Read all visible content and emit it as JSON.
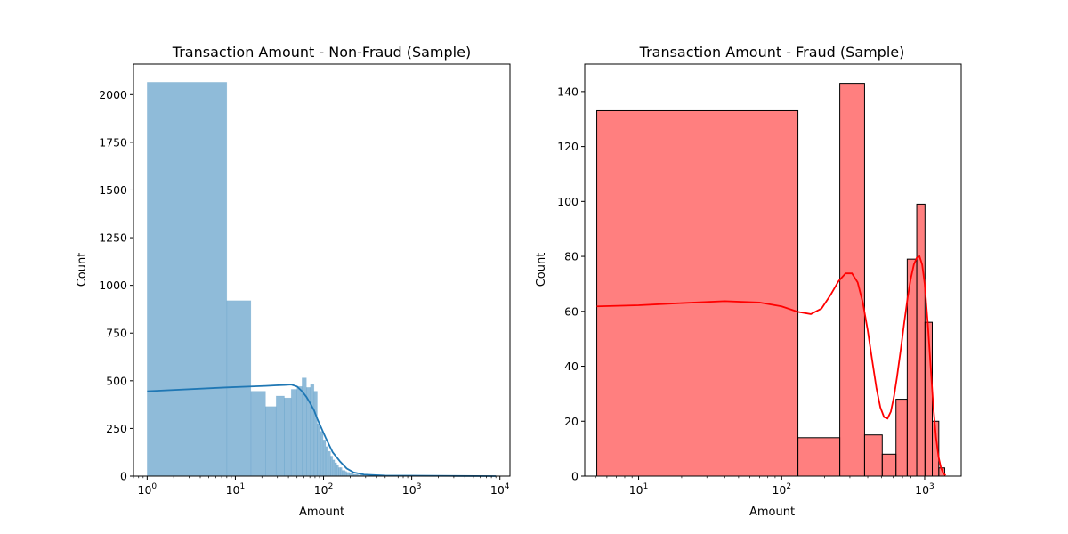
{
  "chart_data": [
    {
      "type": "bar",
      "title": "Transaction Amount - Non-Fraud (Sample)",
      "xlabel": "Amount",
      "ylabel": "Count",
      "xscale": "log",
      "xlim": [
        0.7,
        13000
      ],
      "ylim": [
        0,
        2160
      ],
      "yticks": [
        0,
        250,
        500,
        750,
        1000,
        1250,
        1500,
        1750,
        2000
      ],
      "xticks": [
        1,
        10,
        100,
        1000,
        10000
      ],
      "xtick_labels": [
        [
          "10",
          "0"
        ],
        [
          "10",
          "1"
        ],
        [
          "10",
          "2"
        ],
        [
          "10",
          "3"
        ],
        [
          "10",
          "4"
        ]
      ],
      "bar_color": "#1f77b4",
      "bar_opacity": 0.5,
      "bar_edge": "none",
      "kde_color": "#1f77b4",
      "bars": [
        {
          "x0": 1.0,
          "x1": 8.0,
          "count": 2065
        },
        {
          "x0": 8.0,
          "x1": 15.0,
          "count": 920
        },
        {
          "x0": 15.0,
          "x1": 22.0,
          "count": 445
        },
        {
          "x0": 22.0,
          "x1": 29.0,
          "count": 365
        },
        {
          "x0": 29.0,
          "x1": 36.0,
          "count": 420
        },
        {
          "x0": 36.0,
          "x1": 43.0,
          "count": 410
        },
        {
          "x0": 43.0,
          "x1": 50.0,
          "count": 455
        },
        {
          "x0": 50.0,
          "x1": 57.0,
          "count": 470
        },
        {
          "x0": 57.0,
          "x1": 64.0,
          "count": 515
        },
        {
          "x0": 64.0,
          "x1": 71.0,
          "count": 465
        },
        {
          "x0": 71.0,
          "x1": 78.0,
          "count": 480
        },
        {
          "x0": 78.0,
          "x1": 85.0,
          "count": 445
        },
        {
          "x0": 85.0,
          "x1": 92.0,
          "count": 275
        },
        {
          "x0": 92.0,
          "x1": 99.0,
          "count": 235
        },
        {
          "x0": 99.0,
          "x1": 106.0,
          "count": 190
        },
        {
          "x0": 106.0,
          "x1": 113.0,
          "count": 155
        },
        {
          "x0": 113.0,
          "x1": 120.0,
          "count": 130
        },
        {
          "x0": 120.0,
          "x1": 127.0,
          "count": 105
        },
        {
          "x0": 127.0,
          "x1": 134.0,
          "count": 85
        },
        {
          "x0": 134.0,
          "x1": 141.0,
          "count": 70
        },
        {
          "x0": 141.0,
          "x1": 148.0,
          "count": 60
        },
        {
          "x0": 148.0,
          "x1": 155.0,
          "count": 45
        },
        {
          "x0": 155.0,
          "x1": 162.0,
          "count": 45
        },
        {
          "x0": 162.0,
          "x1": 169.0,
          "count": 30
        },
        {
          "x0": 169.0,
          "x1": 176.0,
          "count": 30
        },
        {
          "x0": 176.0,
          "x1": 183.0,
          "count": 25
        },
        {
          "x0": 183.0,
          "x1": 197.0,
          "count": 20
        },
        {
          "x0": 197.0,
          "x1": 218.0,
          "count": 15
        },
        {
          "x0": 218.0,
          "x1": 246.0,
          "count": 10
        },
        {
          "x0": 246.0,
          "x1": 288.0,
          "count": 6
        },
        {
          "x0": 288.0,
          "x1": 400.0,
          "count": 3
        },
        {
          "x0": 400.0,
          "x1": 700.0,
          "count": 2
        },
        {
          "x0": 700.0,
          "x1": 1500.0,
          "count": 1
        },
        {
          "x0": 1500.0,
          "x1": 9000.0,
          "count": 1
        }
      ],
      "kde": [
        {
          "x": 1.0,
          "y": 445
        },
        {
          "x": 8.0,
          "y": 465
        },
        {
          "x": 15.0,
          "y": 470
        },
        {
          "x": 22.0,
          "y": 473
        },
        {
          "x": 29.0,
          "y": 476
        },
        {
          "x": 36.0,
          "y": 478
        },
        {
          "x": 43.0,
          "y": 480
        },
        {
          "x": 50.0,
          "y": 470
        },
        {
          "x": 57.0,
          "y": 445
        },
        {
          "x": 64.0,
          "y": 415
        },
        {
          "x": 71.0,
          "y": 380
        },
        {
          "x": 78.0,
          "y": 345
        },
        {
          "x": 85.0,
          "y": 300
        },
        {
          "x": 106.0,
          "y": 200
        },
        {
          "x": 127.0,
          "y": 125
        },
        {
          "x": 155.0,
          "y": 75
        },
        {
          "x": 183.0,
          "y": 40
        },
        {
          "x": 218.0,
          "y": 20
        },
        {
          "x": 288.0,
          "y": 8
        },
        {
          "x": 500.0,
          "y": 3
        },
        {
          "x": 1000.0,
          "y": 2
        },
        {
          "x": 3000.0,
          "y": 1
        },
        {
          "x": 9000.0,
          "y": 0
        }
      ]
    },
    {
      "type": "bar",
      "title": "Transaction Amount - Fraud (Sample)",
      "xlabel": "Amount",
      "ylabel": "Count",
      "xscale": "log",
      "xlim": [
        4.2,
        1800
      ],
      "ylim": [
        0,
        150
      ],
      "yticks": [
        0,
        20,
        40,
        60,
        80,
        100,
        120,
        140
      ],
      "xticks": [
        10,
        100,
        1000
      ],
      "xtick_labels": [
        [
          "10",
          "1"
        ],
        [
          "10",
          "2"
        ],
        [
          "10",
          "3"
        ]
      ],
      "bar_color": "#ff0000",
      "bar_opacity": 0.5,
      "bar_edge": "#000000",
      "kde_color": "#ff0000",
      "bars": [
        {
          "x0": 5.1,
          "x1": 130.0,
          "count": 133
        },
        {
          "x0": 130.0,
          "x1": 255.0,
          "count": 14
        },
        {
          "x0": 255.0,
          "x1": 380.0,
          "count": 143
        },
        {
          "x0": 380.0,
          "x1": 505.0,
          "count": 15
        },
        {
          "x0": 505.0,
          "x1": 630.0,
          "count": 8
        },
        {
          "x0": 630.0,
          "x1": 755.0,
          "count": 28
        },
        {
          "x0": 755.0,
          "x1": 880.0,
          "count": 79
        },
        {
          "x0": 880.0,
          "x1": 1005.0,
          "count": 99
        },
        {
          "x0": 1005.0,
          "x1": 1130.0,
          "count": 56
        },
        {
          "x0": 1130.0,
          "x1": 1255.0,
          "count": 20
        },
        {
          "x0": 1255.0,
          "x1": 1380.0,
          "count": 3
        }
      ],
      "kde": [
        {
          "x": 5.1,
          "y": 61.8
        },
        {
          "x": 10,
          "y": 62.2
        },
        {
          "x": 20,
          "y": 63.0
        },
        {
          "x": 40,
          "y": 63.7
        },
        {
          "x": 70,
          "y": 63.2
        },
        {
          "x": 100,
          "y": 61.8
        },
        {
          "x": 130,
          "y": 59.8
        },
        {
          "x": 160,
          "y": 59.0
        },
        {
          "x": 190,
          "y": 61.0
        },
        {
          "x": 220,
          "y": 66.0
        },
        {
          "x": 250,
          "y": 71.0
        },
        {
          "x": 280,
          "y": 73.8
        },
        {
          "x": 310,
          "y": 73.8
        },
        {
          "x": 340,
          "y": 70.5
        },
        {
          "x": 370,
          "y": 63.0
        },
        {
          "x": 400,
          "y": 53.0
        },
        {
          "x": 430,
          "y": 42.0
        },
        {
          "x": 460,
          "y": 32.0
        },
        {
          "x": 490,
          "y": 25.0
        },
        {
          "x": 520,
          "y": 21.5
        },
        {
          "x": 550,
          "y": 21.0
        },
        {
          "x": 580,
          "y": 23.5
        },
        {
          "x": 610,
          "y": 29.0
        },
        {
          "x": 640,
          "y": 36.0
        },
        {
          "x": 680,
          "y": 46.0
        },
        {
          "x": 720,
          "y": 56.0
        },
        {
          "x": 760,
          "y": 65.0
        },
        {
          "x": 800,
          "y": 72.0
        },
        {
          "x": 840,
          "y": 77.0
        },
        {
          "x": 880,
          "y": 79.5
        },
        {
          "x": 920,
          "y": 80.0
        },
        {
          "x": 960,
          "y": 77.0
        },
        {
          "x": 1000,
          "y": 70.0
        },
        {
          "x": 1050,
          "y": 56.0
        },
        {
          "x": 1100,
          "y": 40.0
        },
        {
          "x": 1150,
          "y": 25.0
        },
        {
          "x": 1200,
          "y": 14.0
        },
        {
          "x": 1250,
          "y": 7.0
        },
        {
          "x": 1300,
          "y": 3.0
        },
        {
          "x": 1350,
          "y": 1.0
        },
        {
          "x": 1400,
          "y": 0.3
        }
      ]
    }
  ]
}
